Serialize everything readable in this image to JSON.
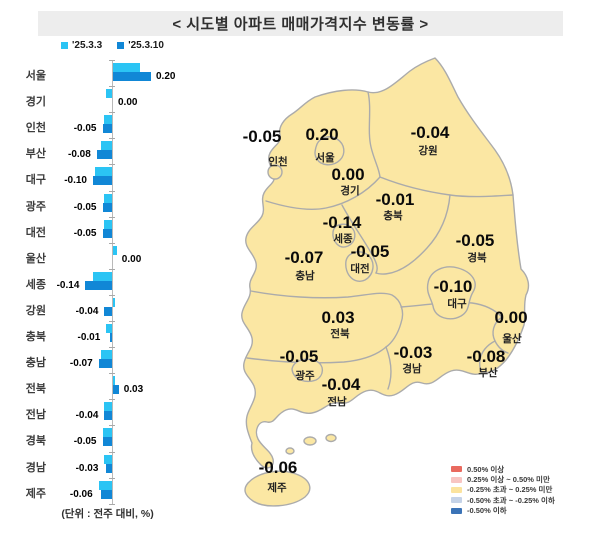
{
  "title": "< 시도별 아파트 매매가격지수 변동률 >",
  "unit_note": "(단위 : 전주 대비, %)",
  "bar_legend": [
    {
      "label": "'25.3.3",
      "color": "#2BC4F4"
    },
    {
      "label": "'25.3.10",
      "color": "#1187D6"
    }
  ],
  "chart_data": {
    "type": "bar",
    "orientation": "horizontal",
    "title": "시도별 아파트 매매가격지수 변동률",
    "unit": "전주 대비, %",
    "categories": [
      "서울",
      "경기",
      "인천",
      "부산",
      "대구",
      "광주",
      "대전",
      "울산",
      "세종",
      "강원",
      "충북",
      "충남",
      "전북",
      "전남",
      "경북",
      "경남",
      "제주"
    ],
    "series": [
      {
        "name": "'25.3.3",
        "color": "#2BC4F4",
        "values": [
          0.14,
          -0.03,
          -0.04,
          -0.06,
          -0.09,
          -0.04,
          -0.04,
          0.02,
          -0.1,
          0.01,
          -0.03,
          -0.06,
          0.01,
          -0.04,
          -0.05,
          -0.04,
          -0.07
        ]
      },
      {
        "name": "'25.3.10",
        "color": "#1187D6",
        "values": [
          0.2,
          0.0,
          -0.05,
          -0.08,
          -0.1,
          -0.05,
          -0.05,
          0.0,
          -0.14,
          -0.04,
          -0.01,
          -0.07,
          0.03,
          -0.04,
          -0.05,
          -0.03,
          -0.06
        ]
      }
    ],
    "value_labels": [
      "0.20",
      "0.00",
      "-0.05",
      "-0.08",
      "-0.10",
      "-0.05",
      "-0.05",
      "0.00",
      "-0.14",
      "-0.04",
      "-0.01",
      "-0.07",
      "0.03",
      "-0.04",
      "-0.05",
      "-0.03",
      "-0.06"
    ],
    "xlim": [
      -0.2,
      0.25
    ]
  },
  "map": {
    "fill_color": "#FBE7A3",
    "border_color": "#ABABAB",
    "regions": [
      {
        "id": "incheon",
        "name": "인천",
        "value": "-0.05"
      },
      {
        "id": "seoul",
        "name": "서울",
        "value": "0.20"
      },
      {
        "id": "gangwon",
        "name": "강원",
        "value": "-0.04"
      },
      {
        "id": "gyeonggi",
        "name": "경기",
        "value": "0.00"
      },
      {
        "id": "chungbuk",
        "name": "충북",
        "value": "-0.01"
      },
      {
        "id": "sejong",
        "name": "세종",
        "value": "-0.14"
      },
      {
        "id": "daejeon",
        "name": "대전",
        "value": "-0.05"
      },
      {
        "id": "chungnam",
        "name": "충남",
        "value": "-0.07"
      },
      {
        "id": "gyeongbuk",
        "name": "경북",
        "value": "-0.05"
      },
      {
        "id": "daegu",
        "name": "대구",
        "value": "-0.10"
      },
      {
        "id": "jeonbuk",
        "name": "전북",
        "value": "0.03"
      },
      {
        "id": "ulsan",
        "name": "울산",
        "value": "0.00"
      },
      {
        "id": "gwangju",
        "name": "광주",
        "value": "-0.05"
      },
      {
        "id": "gyeongnam",
        "name": "경남",
        "value": "-0.03"
      },
      {
        "id": "busan",
        "name": "부산",
        "value": "-0.08"
      },
      {
        "id": "jeonnam",
        "name": "전남",
        "value": "-0.04"
      },
      {
        "id": "jeju",
        "name": "제주",
        "value": "-0.06"
      }
    ],
    "legend": [
      {
        "label": "0.50% 이상",
        "color": "#E96A5F"
      },
      {
        "label": "0.25% 이상 ~ 0.50% 미만",
        "color": "#F8C5C2"
      },
      {
        "label": "-0.25% 초과 ~ 0.25% 미만",
        "color": "#FBE39E"
      },
      {
        "label": "-0.50% 초과 ~ -0.25% 이하",
        "color": "#C5D3E8"
      },
      {
        "label": "-0.50% 이하",
        "color": "#3B73B7"
      }
    ]
  }
}
